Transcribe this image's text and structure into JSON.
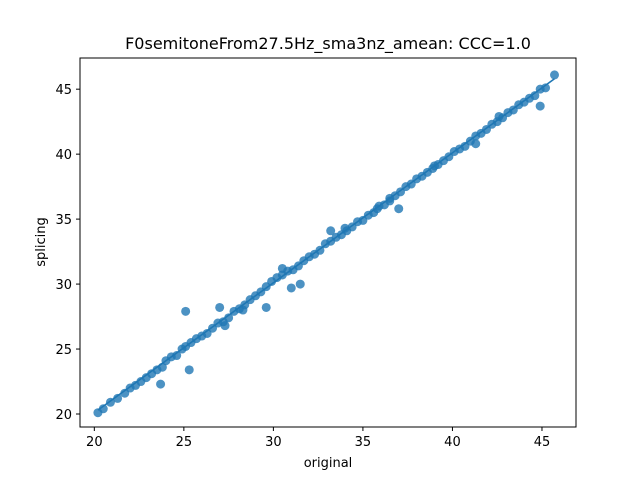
{
  "chart_data": {
    "type": "scatter",
    "title": "F0semitoneFrom27.5Hz_sma3nz_amean: CCC=1.0",
    "xlabel": "original",
    "ylabel": "splicing",
    "xlim": [
      19.2,
      46.9
    ],
    "ylim": [
      19.0,
      47.4
    ],
    "xticks": [
      20,
      25,
      30,
      35,
      40,
      45
    ],
    "yticks": [
      20,
      25,
      30,
      35,
      40,
      45
    ],
    "grid": false,
    "color": "#1f77b4",
    "regression_line": {
      "x": [
        20.2,
        45.7
      ],
      "y": [
        20.3,
        45.8
      ]
    },
    "points": {
      "x": [
        20.2,
        20.5,
        20.9,
        21.3,
        21.7,
        22.0,
        22.3,
        22.6,
        22.9,
        23.2,
        23.5,
        23.8,
        24.0,
        24.3,
        24.6,
        24.9,
        25.1,
        25.4,
        25.7,
        26.0,
        26.3,
        26.6,
        26.9,
        27.2,
        27.5,
        27.8,
        28.1,
        28.4,
        28.7,
        29.0,
        29.3,
        29.6,
        29.9,
        30.2,
        30.5,
        30.8,
        31.1,
        31.4,
        31.7,
        32.0,
        32.3,
        32.6,
        32.9,
        33.2,
        33.5,
        33.8,
        34.1,
        34.4,
        34.7,
        35.0,
        35.3,
        35.6,
        35.9,
        36.2,
        36.5,
        36.8,
        37.1,
        37.4,
        37.7,
        38.0,
        38.3,
        38.6,
        38.9,
        39.2,
        39.5,
        39.8,
        40.1,
        40.4,
        40.7,
        41.0,
        41.3,
        41.6,
        41.9,
        42.2,
        42.5,
        42.8,
        43.1,
        43.4,
        43.7,
        44.0,
        44.3,
        44.6,
        44.9,
        45.2,
        45.7,
        25.1,
        23.7,
        25.3,
        27.0,
        28.3,
        31.5,
        27.3,
        29.6,
        31.0,
        33.2,
        35.8,
        37.0,
        41.3,
        44.9,
        36.5,
        39.0,
        42.6,
        30.5,
        34.0
      ],
      "y": [
        20.1,
        20.4,
        20.9,
        21.2,
        21.6,
        22.0,
        22.2,
        22.5,
        22.8,
        23.1,
        23.4,
        23.6,
        24.1,
        24.4,
        24.5,
        25.0,
        25.2,
        25.5,
        25.8,
        26.0,
        26.2,
        26.6,
        27.0,
        27.1,
        27.4,
        27.9,
        28.1,
        28.4,
        28.8,
        29.1,
        29.4,
        29.8,
        30.2,
        30.5,
        30.7,
        31.0,
        31.1,
        31.4,
        31.8,
        32.1,
        32.3,
        32.6,
        33.1,
        33.3,
        33.6,
        33.8,
        34.1,
        34.4,
        34.8,
        34.9,
        35.3,
        35.5,
        36.0,
        36.1,
        36.6,
        36.8,
        37.1,
        37.5,
        37.7,
        38.1,
        38.3,
        38.6,
        38.9,
        39.2,
        39.5,
        39.8,
        40.2,
        40.4,
        40.6,
        41.0,
        41.4,
        41.6,
        41.9,
        42.3,
        42.5,
        42.8,
        43.2,
        43.4,
        43.8,
        44.0,
        44.3,
        44.5,
        45.0,
        45.1,
        46.1,
        27.9,
        22.3,
        23.4,
        28.2,
        28.0,
        30.0,
        26.8,
        28.2,
        29.7,
        34.1,
        35.8,
        35.8,
        40.8,
        43.7,
        36.4,
        39.1,
        42.9,
        31.2,
        34.3
      ]
    }
  }
}
